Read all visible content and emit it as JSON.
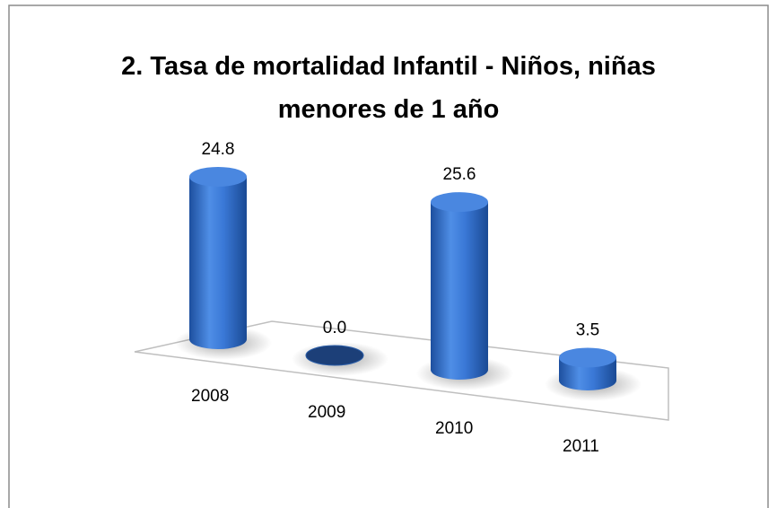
{
  "chart_data": {
    "type": "bar",
    "title": "2. Tasa de mortalidad Infantil - Niños, niñas menores de 1 año",
    "categories": [
      "2008",
      "2009",
      "2010",
      "2011"
    ],
    "values": [
      24.8,
      0.0,
      25.6,
      3.5
    ],
    "value_labels": [
      "24.8",
      "0.0",
      "25.6",
      "3.5"
    ],
    "color": "#2f6fd0"
  }
}
